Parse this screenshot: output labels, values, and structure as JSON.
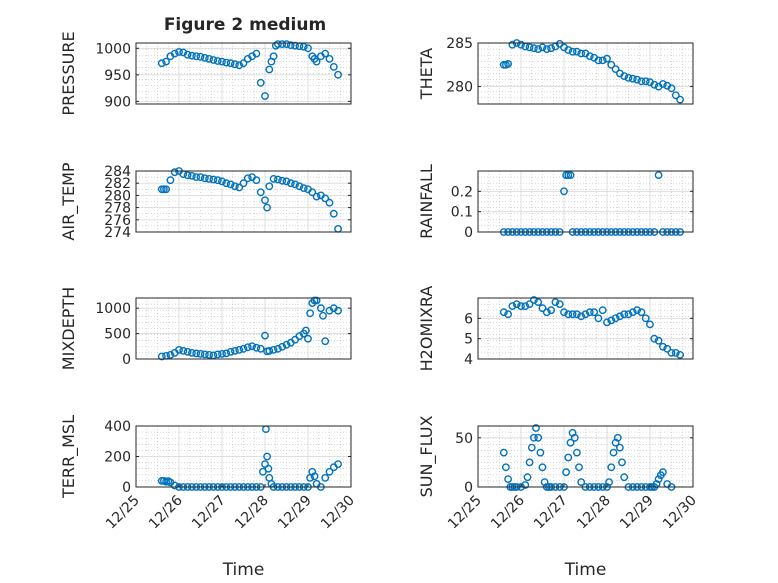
{
  "figure": {
    "title": "Figure 2 medium",
    "marker_color": "#0072bd",
    "axis_color": "#262626",
    "grid_color": "#bfbfbf",
    "background": "#ffffff"
  },
  "chart_data": [
    {
      "type": "scatter",
      "ylabel": "PRESSURE",
      "title": "Figure 2 medium",
      "xlim": [
        0,
        5
      ],
      "xticks": [],
      "ylim": [
        895,
        1010
      ],
      "yticks": [
        900,
        950,
        1000
      ],
      "grid": true,
      "series": [
        {
          "x": [
            0.6,
            0.7,
            0.8,
            0.9,
            1.0,
            1.1,
            1.2,
            1.3,
            1.4,
            1.5,
            1.6,
            1.7,
            1.8,
            1.9,
            2.0,
            2.1,
            2.2,
            2.3,
            2.4,
            2.5,
            2.6,
            2.7,
            2.8,
            2.9,
            3.0,
            3.1,
            3.15,
            3.2,
            3.25,
            3.3,
            3.4,
            3.5,
            3.6,
            3.7,
            3.8,
            3.9,
            4.0,
            4.1,
            4.15,
            4.2,
            4.3,
            4.4,
            4.5,
            4.6,
            4.7
          ],
          "y": [
            972,
            975,
            985,
            990,
            993,
            992,
            988,
            986,
            985,
            984,
            982,
            980,
            978,
            976,
            975,
            973,
            972,
            970,
            968,
            972,
            980,
            985,
            990,
            935,
            910,
            960,
            975,
            985,
            1005,
            1008,
            1008,
            1008,
            1006,
            1005,
            1004,
            1003,
            1000,
            985,
            980,
            975,
            985,
            990,
            980,
            965,
            950
          ]
        }
      ]
    },
    {
      "type": "scatter",
      "ylabel": "THETA",
      "xlim": [
        0,
        5
      ],
      "xticks": [],
      "ylim": [
        278,
        285
      ],
      "yticks": [
        280,
        285
      ],
      "grid": true,
      "series": [
        {
          "x": [
            0.6,
            0.65,
            0.7,
            0.8,
            0.9,
            1.0,
            1.1,
            1.2,
            1.3,
            1.4,
            1.5,
            1.6,
            1.7,
            1.8,
            1.9,
            2.0,
            2.1,
            2.2,
            2.3,
            2.4,
            2.5,
            2.6,
            2.7,
            2.8,
            2.9,
            3.0,
            3.1,
            3.2,
            3.3,
            3.4,
            3.5,
            3.6,
            3.7,
            3.8,
            3.9,
            4.0,
            4.1,
            4.2,
            4.3,
            4.4,
            4.5,
            4.6,
            4.7
          ],
          "y": [
            282.5,
            282.5,
            282.6,
            284.8,
            285.0,
            284.8,
            284.6,
            284.5,
            284.4,
            284.3,
            284.5,
            284.3,
            284.4,
            284.6,
            284.9,
            284.5,
            284.2,
            284.0,
            284.0,
            283.8,
            283.8,
            283.5,
            283.3,
            283.0,
            283.0,
            283.2,
            282.5,
            282.0,
            281.5,
            281.2,
            281.0,
            280.9,
            280.8,
            280.6,
            280.6,
            280.5,
            280.2,
            280.0,
            280.3,
            280.1,
            279.8,
            279.0,
            278.5
          ]
        }
      ]
    },
    {
      "type": "scatter",
      "ylabel": "AIR_TEMP",
      "xlim": [
        0,
        5
      ],
      "xticks": [],
      "ylim": [
        274,
        284
      ],
      "yticks": [
        274,
        276,
        278,
        280,
        282,
        284
      ],
      "grid": true,
      "series": [
        {
          "x": [
            0.6,
            0.65,
            0.7,
            0.8,
            0.9,
            1.0,
            1.1,
            1.2,
            1.3,
            1.4,
            1.5,
            1.6,
            1.7,
            1.8,
            1.9,
            2.0,
            2.1,
            2.2,
            2.3,
            2.4,
            2.5,
            2.6,
            2.7,
            2.8,
            2.9,
            3.0,
            3.05,
            3.1,
            3.2,
            3.3,
            3.4,
            3.5,
            3.6,
            3.7,
            3.8,
            3.9,
            4.0,
            4.1,
            4.2,
            4.3,
            4.4,
            4.5,
            4.6,
            4.7
          ],
          "y": [
            281.0,
            281.0,
            281.0,
            282.5,
            283.8,
            284.0,
            283.5,
            283.3,
            283.2,
            283.0,
            283.0,
            282.8,
            282.7,
            282.6,
            282.5,
            282.3,
            282.0,
            281.8,
            281.5,
            281.3,
            282.0,
            282.8,
            283.0,
            282.5,
            280.5,
            279.2,
            278.0,
            281.5,
            282.7,
            282.6,
            282.4,
            282.3,
            282.0,
            281.8,
            281.5,
            281.2,
            281.0,
            280.5,
            279.8,
            280.0,
            279.5,
            278.8,
            277.0,
            274.5
          ]
        }
      ]
    },
    {
      "type": "scatter",
      "ylabel": "RAINFALL",
      "xlim": [
        0,
        5
      ],
      "xticks": [],
      "ylim": [
        0,
        0.3
      ],
      "yticks": [
        0,
        0.1,
        0.2
      ],
      "grid": true,
      "series": [
        {
          "x": [
            0.6,
            0.7,
            0.8,
            0.9,
            1.0,
            1.1,
            1.2,
            1.3,
            1.4,
            1.5,
            1.6,
            1.7,
            1.8,
            1.9,
            2.0,
            2.05,
            2.1,
            2.15,
            2.2,
            2.3,
            2.4,
            2.5,
            2.6,
            2.7,
            2.8,
            2.9,
            3.0,
            3.1,
            3.2,
            3.3,
            3.4,
            3.5,
            3.6,
            3.7,
            3.8,
            3.9,
            4.0,
            4.1,
            4.2,
            4.3,
            4.4,
            4.5,
            4.6,
            4.7
          ],
          "y": [
            0,
            0,
            0,
            0,
            0,
            0,
            0,
            0,
            0,
            0,
            0,
            0,
            0,
            0,
            0.2,
            0.28,
            0.28,
            0.28,
            0,
            0,
            0,
            0,
            0,
            0,
            0,
            0,
            0,
            0,
            0,
            0,
            0,
            0,
            0,
            0,
            0,
            0,
            0,
            0,
            0.28,
            0,
            0,
            0,
            0,
            0
          ]
        }
      ]
    },
    {
      "type": "scatter",
      "ylabel": "MIXDEPTH",
      "xlim": [
        0,
        5
      ],
      "xticks": [],
      "ylim": [
        0,
        1200
      ],
      "yticks": [
        0,
        500,
        1000
      ],
      "grid": true,
      "series": [
        {
          "x": [
            0.6,
            0.7,
            0.8,
            0.9,
            1.0,
            1.1,
            1.2,
            1.3,
            1.4,
            1.5,
            1.6,
            1.7,
            1.8,
            1.9,
            2.0,
            2.1,
            2.2,
            2.3,
            2.4,
            2.5,
            2.6,
            2.7,
            2.8,
            2.9,
            3.0,
            3.05,
            3.1,
            3.2,
            3.3,
            3.4,
            3.5,
            3.6,
            3.7,
            3.8,
            3.9,
            3.95,
            4.0,
            4.05,
            4.1,
            4.15,
            4.2,
            4.3,
            4.35,
            4.4,
            4.5,
            4.6,
            4.7
          ],
          "y": [
            50,
            60,
            80,
            120,
            180,
            160,
            140,
            120,
            110,
            100,
            90,
            80,
            70,
            90,
            100,
            110,
            140,
            160,
            180,
            200,
            230,
            250,
            220,
            200,
            460,
            150,
            160,
            180,
            200,
            240,
            280,
            320,
            380,
            450,
            500,
            560,
            400,
            900,
            1100,
            1150,
            1150,
            1000,
            850,
            350,
            950,
            1000,
            950
          ]
        }
      ]
    },
    {
      "type": "scatter",
      "ylabel": "H2OMIXRA",
      "xlim": [
        0,
        5
      ],
      "xticks": [],
      "ylim": [
        4,
        7
      ],
      "yticks": [
        4,
        5,
        6
      ],
      "grid": true,
      "series": [
        {
          "x": [
            0.6,
            0.7,
            0.8,
            0.9,
            1.0,
            1.1,
            1.2,
            1.3,
            1.4,
            1.5,
            1.6,
            1.7,
            1.8,
            1.9,
            2.0,
            2.1,
            2.2,
            2.3,
            2.4,
            2.5,
            2.6,
            2.7,
            2.8,
            2.9,
            3.0,
            3.1,
            3.2,
            3.3,
            3.4,
            3.5,
            3.6,
            3.7,
            3.8,
            3.9,
            4.0,
            4.1,
            4.2,
            4.3,
            4.4,
            4.5,
            4.6,
            4.7
          ],
          "y": [
            6.3,
            6.2,
            6.6,
            6.7,
            6.6,
            6.6,
            6.7,
            6.9,
            6.8,
            6.5,
            6.3,
            6.4,
            6.8,
            6.7,
            6.3,
            6.2,
            6.2,
            6.2,
            6.1,
            6.2,
            6.3,
            6.3,
            6.0,
            6.4,
            5.8,
            5.9,
            6.0,
            6.1,
            6.2,
            6.2,
            6.3,
            6.4,
            6.3,
            6.0,
            5.7,
            5.0,
            4.9,
            4.6,
            4.5,
            4.3,
            4.3,
            4.2
          ]
        }
      ]
    },
    {
      "type": "scatter",
      "ylabel": "TERR_MSL",
      "xlim": [
        0,
        5
      ],
      "xticks": [
        0,
        1,
        2,
        3,
        4,
        5
      ],
      "xticklabels": [
        "12/25",
        "12/26",
        "12/27",
        "12/28",
        "12/29",
        "12/30"
      ],
      "xlabel": "Time",
      "ylim": [
        0,
        400
      ],
      "yticks": [
        0,
        200,
        400
      ],
      "grid": true,
      "series": [
        {
          "x": [
            0.6,
            0.65,
            0.7,
            0.75,
            0.8,
            0.9,
            1.0,
            1.1,
            1.2,
            1.3,
            1.4,
            1.5,
            1.6,
            1.7,
            1.8,
            1.9,
            2.0,
            2.1,
            2.2,
            2.3,
            2.4,
            2.5,
            2.6,
            2.7,
            2.8,
            2.9,
            2.95,
            3.0,
            3.02,
            3.05,
            3.08,
            3.1,
            3.15,
            3.2,
            3.3,
            3.4,
            3.5,
            3.6,
            3.7,
            3.8,
            3.9,
            4.0,
            4.05,
            4.1,
            4.15,
            4.2,
            4.3,
            4.4,
            4.5,
            4.6,
            4.7
          ],
          "y": [
            40,
            40,
            35,
            38,
            30,
            10,
            0,
            0,
            0,
            0,
            0,
            0,
            0,
            0,
            0,
            0,
            0,
            0,
            0,
            0,
            0,
            0,
            0,
            0,
            0,
            0,
            100,
            150,
            380,
            200,
            120,
            60,
            20,
            0,
            0,
            0,
            0,
            0,
            0,
            0,
            0,
            0,
            60,
            100,
            70,
            20,
            0,
            60,
            100,
            130,
            150
          ]
        }
      ]
    },
    {
      "type": "scatter",
      "ylabel": "SUN_FLUX",
      "xlim": [
        0,
        5
      ],
      "xticks": [
        0,
        1,
        2,
        3,
        4,
        5
      ],
      "xticklabels": [
        "12/25",
        "12/26",
        "12/27",
        "12/28",
        "12/29",
        "12/30"
      ],
      "xlabel": "Time",
      "ylim": [
        0,
        62
      ],
      "yticks": [
        0,
        50
      ],
      "grid": true,
      "series": [
        {
          "x": [
            0.6,
            0.65,
            0.7,
            0.75,
            0.8,
            0.85,
            0.9,
            1.0,
            1.1,
            1.15,
            1.2,
            1.25,
            1.3,
            1.35,
            1.4,
            1.45,
            1.5,
            1.55,
            1.6,
            1.65,
            1.7,
            1.8,
            1.9,
            2.0,
            2.05,
            2.1,
            2.15,
            2.2,
            2.25,
            2.3,
            2.35,
            2.4,
            2.5,
            2.6,
            2.7,
            2.8,
            2.9,
            3.0,
            3.05,
            3.1,
            3.15,
            3.2,
            3.25,
            3.3,
            3.35,
            3.4,
            3.5,
            3.6,
            3.7,
            3.8,
            3.9,
            4.0,
            4.05,
            4.1,
            4.15,
            4.2,
            4.25,
            4.3,
            4.4,
            4.5
          ],
          "y": [
            35,
            20,
            8,
            0,
            0,
            0,
            0,
            0,
            2,
            10,
            25,
            40,
            50,
            60,
            50,
            35,
            20,
            5,
            0,
            0,
            0,
            0,
            0,
            0,
            15,
            30,
            45,
            55,
            50,
            35,
            20,
            5,
            0,
            0,
            0,
            0,
            0,
            0,
            5,
            20,
            35,
            45,
            50,
            40,
            25,
            10,
            0,
            0,
            0,
            0,
            0,
            0,
            0,
            0,
            3,
            8,
            12,
            15,
            3,
            0
          ]
        }
      ]
    }
  ]
}
